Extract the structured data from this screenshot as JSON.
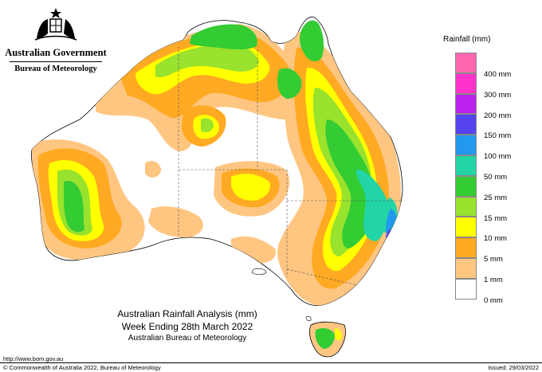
{
  "header": {
    "government": "Australian Government",
    "agency": "Bureau of Meteorology"
  },
  "legend": {
    "title": "Rainfall (mm)",
    "items": [
      {
        "label": "",
        "color": "#ff66b2"
      },
      {
        "label": "400 mm",
        "color": "#ff33cc"
      },
      {
        "label": "300 mm",
        "color": "#bb22ee"
      },
      {
        "label": "200 mm",
        "color": "#5544ee"
      },
      {
        "label": "150 mm",
        "color": "#2299ee"
      },
      {
        "label": "100 mm",
        "color": "#22d4a6"
      },
      {
        "label": "50 mm",
        "color": "#33cc33"
      },
      {
        "label": "25 mm",
        "color": "#99e22e"
      },
      {
        "label": "15 mm",
        "color": "#ffff00"
      },
      {
        "label": "10 mm",
        "color": "#ffaa22"
      },
      {
        "label": "5 mm",
        "color": "#ffc682"
      },
      {
        "label": "1 mm",
        "color": "#ffffff"
      }
    ],
    "zero_label": "0 mm"
  },
  "title": {
    "line1": "Australian Rainfall Analysis (mm)",
    "line2": "Week Ending 28th March 2022",
    "line3": "Australian Bureau of Meteorology"
  },
  "footer": {
    "url": "http://www.bom.gov.au",
    "copyright": "© Commonwealth of Australia 2022, Bureau of Meteorology",
    "issued": "Issued: 29/03/2022"
  },
  "map": {
    "colors": {
      "c1": "#ffc682",
      "c5": "#ffaa22",
      "c10": "#ffff00",
      "c15": "#99e22e",
      "c25": "#33cc33",
      "c50": "#22d4a6",
      "c100": "#2299ee",
      "c150": "#5544ee"
    }
  }
}
